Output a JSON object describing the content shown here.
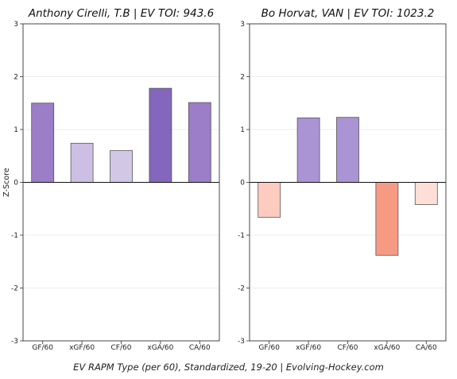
{
  "chart_data": {
    "type": "bar",
    "ylabel": "Z-Score",
    "xlabel": "EV RAPM Type (per 60), Standardized, 19-20    |    Evolving-Hockey.com",
    "ylim": [
      -3,
      3
    ],
    "yticks": [
      -3,
      -2,
      -1,
      0,
      1,
      2,
      3
    ],
    "grid": "horizontal",
    "categories": [
      "GF/60",
      "xGF/60",
      "CF/60",
      "xGA/60",
      "CA/60"
    ],
    "panels": [
      {
        "title": "Anthony Cirelli, T.B  |  EV TOI: 943.6",
        "values": [
          1.5,
          0.74,
          0.6,
          1.78,
          1.51
        ],
        "colors": [
          "#9b7dc8",
          "#cdbfe3",
          "#d3c7e6",
          "#8566bd",
          "#9b7dc8"
        ]
      },
      {
        "title": "Bo Horvat, VAN  |  EV TOI: 1023.2",
        "values": [
          -0.66,
          1.22,
          1.23,
          -1.38,
          -0.42
        ],
        "colors": [
          "#fdcbbf",
          "#ab94d4",
          "#ab94d4",
          "#f79a84",
          "#fedfd7"
        ]
      }
    ]
  }
}
